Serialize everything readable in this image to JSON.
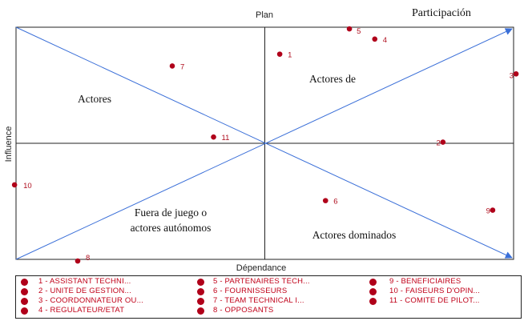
{
  "chart_data": {
    "type": "scatter",
    "title": "Plan",
    "corner_title": "Participación",
    "xlabel": "Dépendance",
    "ylabel": "Influence",
    "xlim": [
      0,
      100
    ],
    "ylim": [
      0,
      100
    ],
    "grid": false,
    "legend_position": "bottom",
    "quadrant_labels": [
      {
        "text": "Actores",
        "quadrant": "top-left"
      },
      {
        "text": "Actores de",
        "quadrant": "top-right"
      },
      {
        "text": "Fuera de juego o",
        "quadrant": "bottom-left"
      },
      {
        "text": "actores autónomos",
        "quadrant": "bottom-left"
      },
      {
        "text": "Actores dominados",
        "quadrant": "bottom-right"
      }
    ],
    "points": [
      {
        "label": "1",
        "x": 53.0,
        "y": 88.4
      },
      {
        "label": "2",
        "x": 85.8,
        "y": 50.5
      },
      {
        "label": "3",
        "x": 100.5,
        "y": 79.9
      },
      {
        "label": "4",
        "x": 72.1,
        "y": 94.9
      },
      {
        "label": "5",
        "x": 67.0,
        "y": 99.3
      },
      {
        "label": "6",
        "x": 62.2,
        "y": 25.3
      },
      {
        "label": "7",
        "x": 31.4,
        "y": 83.3
      },
      {
        "label": "8",
        "x": 12.4,
        "y": -0.7
      },
      {
        "label": "9",
        "x": 95.8,
        "y": 21.2
      },
      {
        "label": "10",
        "x": -0.3,
        "y": 32.1
      },
      {
        "label": "11",
        "x": 39.7,
        "y": 52.7
      }
    ],
    "legend": [
      "1 - ASSISTANT TECHNI...",
      "2 - UNITE DE GESTION...",
      "3 - COORDONNATEUR OU...",
      "4 - REGULATEUR/ETAT",
      "5 - PARTENAIRES TECH...",
      "6 - FOURNISSEURS",
      "7 - TEAM TECHNICAL I...",
      "8 - OPPOSANTS",
      "9 - BENEFICIAIRES",
      "10 - FAISEURS D'OPIN...",
      "11 - COMITE DE PILOT..."
    ]
  },
  "colors": {
    "point": "#b0001a",
    "point_label": "#b01020",
    "legend_text": "#c00018",
    "arrow": "#3a6fd8",
    "frame": "#222222"
  }
}
